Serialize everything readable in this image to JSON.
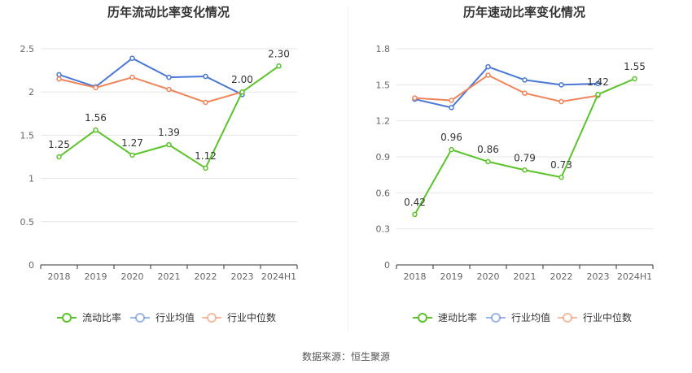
{
  "source": "数据来源：恒生聚源",
  "chart_data": [
    {
      "type": "line",
      "title": "历年流动比率变化情况",
      "categories": [
        "2018",
        "2019",
        "2020",
        "2021",
        "2022",
        "2023",
        "2024H1"
      ],
      "ylim": [
        0,
        2.5
      ],
      "yticks": [
        "0",
        "0.5",
        "1",
        "1.5",
        "2",
        "2.5"
      ],
      "grid": true,
      "legend_position": "bottom",
      "series": [
        {
          "name": "流动比率",
          "color": "#5ac42a",
          "values": [
            1.25,
            1.56,
            1.27,
            1.39,
            1.12,
            2.0,
            2.3
          ],
          "labels": [
            "1.25",
            "1.56",
            "1.27",
            "1.39",
            "1.12",
            "2.00",
            "2.30"
          ]
        },
        {
          "name": "行业均值",
          "color": "#4a78d6",
          "values": [
            2.2,
            2.06,
            2.39,
            2.17,
            2.18,
            1.97,
            null
          ]
        },
        {
          "name": "行业中位数",
          "color": "#f0845a",
          "values": [
            2.15,
            2.05,
            2.17,
            2.03,
            1.88,
            2.0,
            null
          ]
        }
      ]
    },
    {
      "type": "line",
      "title": "历年速动比率变化情况",
      "categories": [
        "2018",
        "2019",
        "2020",
        "2021",
        "2022",
        "2023",
        "2024H1"
      ],
      "ylim": [
        0,
        1.8
      ],
      "yticks": [
        "0",
        "0.3",
        "0.6",
        "0.9",
        "1.2",
        "1.5",
        "1.8"
      ],
      "grid": true,
      "legend_position": "bottom",
      "series": [
        {
          "name": "速动比率",
          "color": "#5ac42a",
          "values": [
            0.42,
            0.96,
            0.86,
            0.79,
            0.73,
            1.42,
            1.55
          ],
          "labels": [
            "0.42",
            "0.96",
            "0.86",
            "0.79",
            "0.73",
            "1.42",
            "1.55"
          ]
        },
        {
          "name": "行业均值",
          "color": "#4a78d6",
          "values": [
            1.38,
            1.31,
            1.65,
            1.54,
            1.5,
            1.51,
            null
          ]
        },
        {
          "name": "行业中位数",
          "color": "#f0845a",
          "values": [
            1.39,
            1.37,
            1.58,
            1.43,
            1.36,
            1.41,
            null
          ]
        }
      ]
    }
  ]
}
